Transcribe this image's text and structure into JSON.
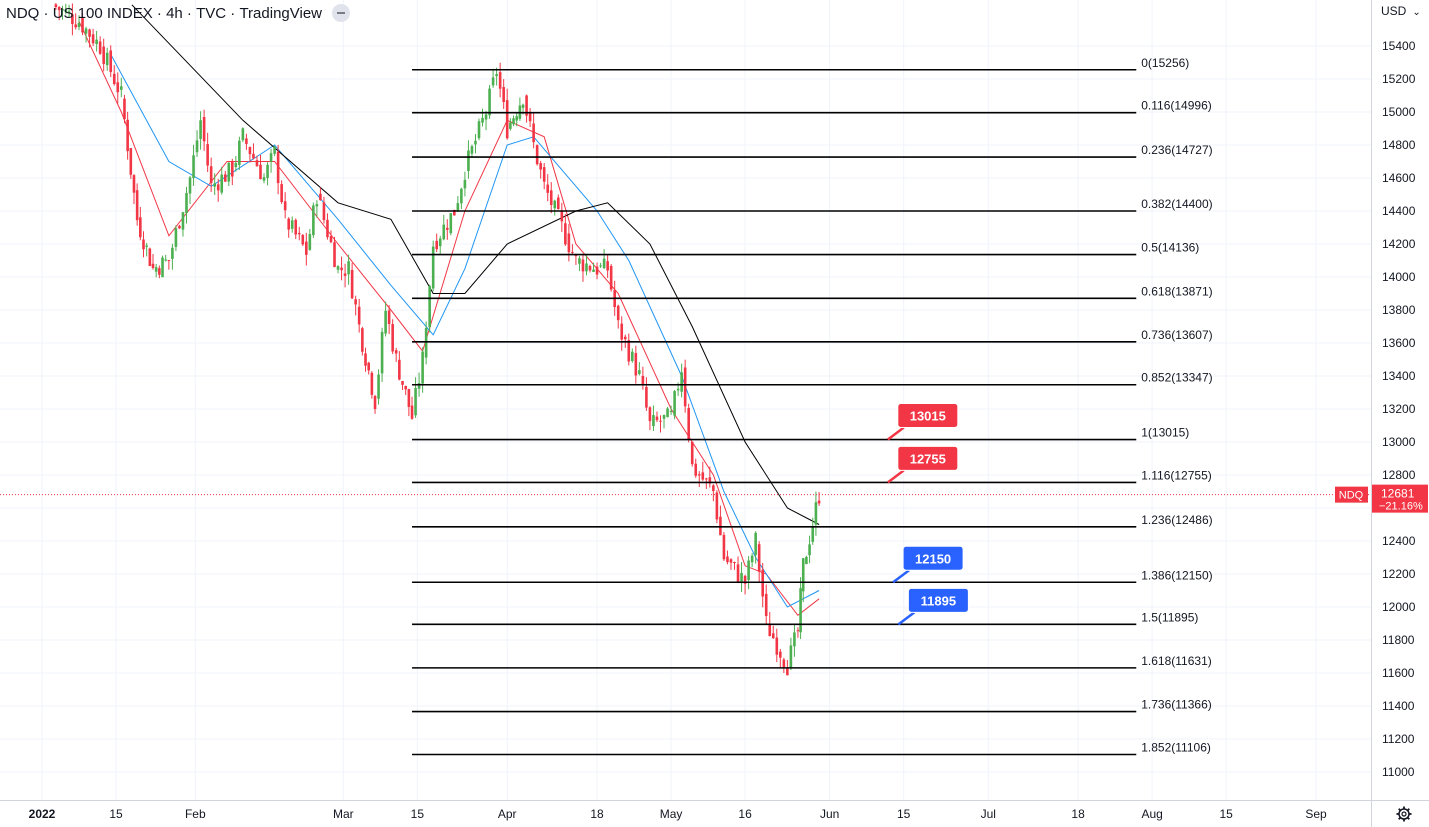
{
  "header": {
    "symbol": "NDQ",
    "name": "US 100 INDEX",
    "interval": "4h",
    "source": "TVC",
    "platform": "TradingView"
  },
  "currency": "USD",
  "icons": {
    "collapse": "minus-icon",
    "currency_menu": "chevron-down-icon",
    "settings": "gear-icon"
  },
  "colors": {
    "up": "#4caf50",
    "down": "#f23645",
    "ma_fast": "#f23645",
    "ma_mid": "#2196f3",
    "ma_slow": "#000000",
    "label_red": "#f23645",
    "label_blue": "#2962ff"
  },
  "chart_data": {
    "type": "candlestick",
    "y_axis": {
      "min": 10850,
      "max": 15650,
      "ticks": [
        11000,
        11200,
        11400,
        11600,
        11800,
        12000,
        12200,
        12400,
        12600,
        12800,
        13000,
        13200,
        13400,
        13600,
        13800,
        14000,
        14200,
        14400,
        14600,
        14800,
        15000,
        15200,
        15400
      ]
    },
    "x_axis": {
      "labels": [
        "2022",
        "15",
        "Feb",
        "Mar",
        "15",
        "Apr",
        "18",
        "May",
        "16",
        "Jun",
        "15",
        "Jul",
        "18",
        "Aug",
        "15",
        "Sep"
      ],
      "label_dates": [
        "2022-01-03",
        "2022-01-17",
        "2022-02-01",
        "2022-03-01",
        "2022-03-15",
        "2022-04-01",
        "2022-04-18",
        "2022-05-02",
        "2022-05-16",
        "2022-06-01",
        "2022-06-15",
        "2022-07-01",
        "2022-07-18",
        "2022-08-01",
        "2022-08-15",
        "2022-09-01"
      ]
    },
    "price_path": [
      [
        "2022-01-05",
        15650
      ],
      [
        "2022-01-10",
        15550
      ],
      [
        "2022-01-14",
        15400
      ],
      [
        "2022-01-18",
        15100
      ],
      [
        "2022-01-21",
        14350
      ],
      [
        "2022-01-24",
        14050
      ],
      [
        "2022-01-27",
        14100
      ],
      [
        "2022-01-31",
        14600
      ],
      [
        "2022-02-02",
        14950
      ],
      [
        "2022-02-04",
        14550
      ],
      [
        "2022-02-08",
        14650
      ],
      [
        "2022-02-10",
        14850
      ],
      [
        "2022-02-14",
        14600
      ],
      [
        "2022-02-16",
        14750
      ],
      [
        "2022-02-18",
        14350
      ],
      [
        "2022-02-22",
        14150
      ],
      [
        "2022-02-24",
        14500
      ],
      [
        "2022-02-28",
        14050
      ],
      [
        "2022-03-02",
        14050
      ],
      [
        "2022-03-04",
        13700
      ],
      [
        "2022-03-07",
        13250
      ],
      [
        "2022-03-09",
        13800
      ],
      [
        "2022-03-11",
        13500
      ],
      [
        "2022-03-14",
        13150
      ],
      [
        "2022-03-16",
        13500
      ],
      [
        "2022-03-18",
        14200
      ],
      [
        "2022-03-22",
        14400
      ],
      [
        "2022-03-24",
        14650
      ],
      [
        "2022-03-28",
        15000
      ],
      [
        "2022-03-30",
        15250
      ],
      [
        "2022-04-01",
        14900
      ],
      [
        "2022-04-04",
        15100
      ],
      [
        "2022-04-06",
        14800
      ],
      [
        "2022-04-08",
        14550
      ],
      [
        "2022-04-12",
        14250
      ],
      [
        "2022-04-14",
        14100
      ],
      [
        "2022-04-18",
        14050
      ],
      [
        "2022-04-20",
        14050
      ],
      [
        "2022-04-22",
        13700
      ],
      [
        "2022-04-26",
        13400
      ],
      [
        "2022-04-28",
        13100
      ],
      [
        "2022-05-02",
        13150
      ],
      [
        "2022-05-04",
        13450
      ],
      [
        "2022-05-06",
        12850
      ],
      [
        "2022-05-10",
        12700
      ],
      [
        "2022-05-12",
        12300
      ],
      [
        "2022-05-16",
        12150
      ],
      [
        "2022-05-18",
        12400
      ],
      [
        "2022-05-20",
        11900
      ],
      [
        "2022-05-24",
        11650
      ],
      [
        "2022-05-26",
        11850
      ],
      [
        "2022-05-27",
        12250
      ],
      [
        "2022-05-30",
        12681
      ]
    ],
    "moving_averages": [
      {
        "color": "#f23645",
        "points": [
          [
            "2022-01-10",
            15550
          ],
          [
            "2022-01-18",
            15000
          ],
          [
            "2022-01-27",
            14250
          ],
          [
            "2022-02-07",
            14700
          ],
          [
            "2022-02-16",
            14700
          ],
          [
            "2022-02-28",
            14200
          ],
          [
            "2022-03-10",
            13800
          ],
          [
            "2022-03-16",
            13550
          ],
          [
            "2022-03-24",
            14400
          ],
          [
            "2022-04-01",
            14950
          ],
          [
            "2022-04-08",
            14850
          ],
          [
            "2022-04-14",
            14200
          ],
          [
            "2022-04-22",
            13900
          ],
          [
            "2022-05-02",
            13200
          ],
          [
            "2022-05-10",
            12800
          ],
          [
            "2022-05-16",
            12250
          ],
          [
            "2022-05-20",
            12200
          ],
          [
            "2022-05-26",
            11950
          ],
          [
            "2022-05-30",
            12050
          ]
        ]
      },
      {
        "color": "#2196f3",
        "points": [
          [
            "2022-01-16",
            15350
          ],
          [
            "2022-01-27",
            14700
          ],
          [
            "2022-02-04",
            14550
          ],
          [
            "2022-02-16",
            14800
          ],
          [
            "2022-02-28",
            14350
          ],
          [
            "2022-03-10",
            13950
          ],
          [
            "2022-03-18",
            13650
          ],
          [
            "2022-03-24",
            14050
          ],
          [
            "2022-04-01",
            14800
          ],
          [
            "2022-04-06",
            14850
          ],
          [
            "2022-04-18",
            14400
          ],
          [
            "2022-04-24",
            14100
          ],
          [
            "2022-05-04",
            13400
          ],
          [
            "2022-05-12",
            12700
          ],
          [
            "2022-05-18",
            12300
          ],
          [
            "2022-05-24",
            12000
          ],
          [
            "2022-05-30",
            12100
          ]
        ]
      },
      {
        "color": "#000000",
        "points": [
          [
            "2022-01-20",
            15650
          ],
          [
            "2022-02-10",
            14950
          ],
          [
            "2022-02-28",
            14450
          ],
          [
            "2022-03-10",
            14350
          ],
          [
            "2022-03-18",
            13900
          ],
          [
            "2022-03-24",
            13900
          ],
          [
            "2022-04-01",
            14200
          ],
          [
            "2022-04-14",
            14400
          ],
          [
            "2022-04-20",
            14450
          ],
          [
            "2022-04-28",
            14200
          ],
          [
            "2022-05-06",
            13700
          ],
          [
            "2022-05-16",
            13000
          ],
          [
            "2022-05-24",
            12600
          ],
          [
            "2022-05-30",
            12500
          ]
        ]
      }
    ],
    "fib_levels": [
      {
        "label": "0(15256)",
        "value": 15256
      },
      {
        "label": "0.116(14996)",
        "value": 14996
      },
      {
        "label": "0.236(14727)",
        "value": 14727
      },
      {
        "label": "0.382(14400)",
        "value": 14400
      },
      {
        "label": "0.5(14136)",
        "value": 14136
      },
      {
        "label": "0.618(13871)",
        "value": 13871
      },
      {
        "label": "0.736(13607)",
        "value": 13607
      },
      {
        "label": "0.852(13347)",
        "value": 13347
      },
      {
        "label": "1(13015)",
        "value": 13015
      },
      {
        "label": "1.116(12755)",
        "value": 12755
      },
      {
        "label": "1.236(12486)",
        "value": 12486
      },
      {
        "label": "1.386(12150)",
        "value": 12150
      },
      {
        "label": "1.5(11895)",
        "value": 11895
      },
      {
        "label": "1.618(11631)",
        "value": 11631
      },
      {
        "label": "1.736(11366)",
        "value": 11366
      },
      {
        "label": "1.852(11106)",
        "value": 11106
      }
    ],
    "fib_range": {
      "start": "2022-03-14",
      "end": "2022-07-29"
    },
    "callouts": [
      {
        "text": "13015",
        "color": "#f23645",
        "value": 13015,
        "date": "2022-06-12"
      },
      {
        "text": "12755",
        "color": "#f23645",
        "value": 12755,
        "date": "2022-06-12"
      },
      {
        "text": "12150",
        "color": "#2962ff",
        "value": 12150,
        "date": "2022-06-13"
      },
      {
        "text": "11895",
        "color": "#2962ff",
        "value": 11895,
        "date": "2022-06-14"
      }
    ],
    "last_price": {
      "symbol": "NDQ",
      "value": 12681,
      "change": "−21.16%",
      "label": "12681"
    }
  }
}
